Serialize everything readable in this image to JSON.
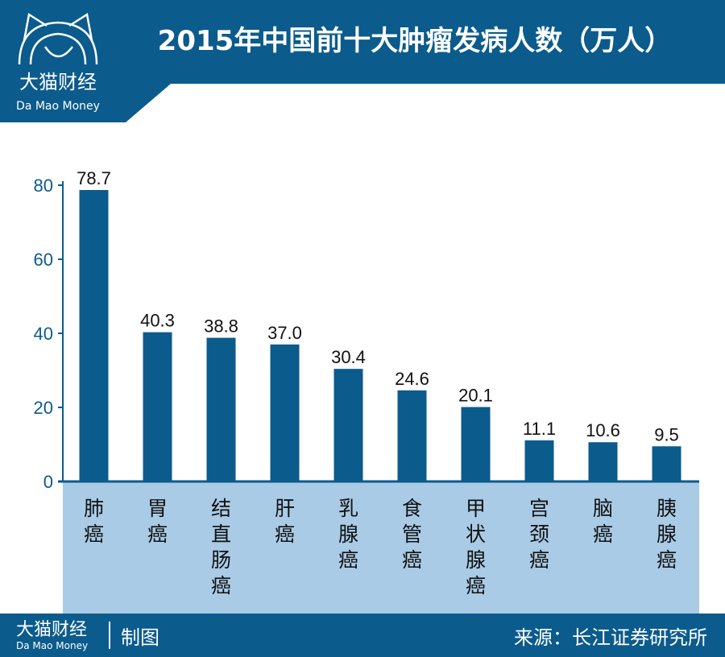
{
  "header": {
    "title": "2015年中国前十大肿瘤发病人数（万人）",
    "logo_cn": "大猫财经",
    "logo_en": "Da Mao Money"
  },
  "footer": {
    "brand_cn": "大猫财经",
    "brand_en": "Da Mao Money",
    "made": "制图",
    "source": "来源：长江证券研究所"
  },
  "colors": {
    "brand": "#0b5b8c",
    "bar": "#0b5b8c",
    "category_band": "#a9cbe6"
  },
  "chart_data": {
    "type": "bar",
    "title": "2015年中国前十大肿瘤发病人数（万人）",
    "categories": [
      "肺癌",
      "胃癌",
      "结直肠癌",
      "肝癌",
      "乳腺癌",
      "食管癌",
      "甲状腺癌",
      "宫颈癌",
      "脑癌",
      "胰腺癌"
    ],
    "values": [
      78.7,
      40.3,
      38.8,
      37.0,
      30.4,
      24.6,
      20.1,
      11.1,
      10.6,
      9.5
    ],
    "value_labels": [
      "78.7",
      "40.3",
      "38.8",
      "37.0",
      "30.4",
      "24.6",
      "20.1",
      "11.1",
      "10.6",
      "9.5"
    ],
    "yticks": [
      "0",
      "20",
      "40",
      "60",
      "80"
    ],
    "ylim": [
      0,
      80
    ],
    "grid": false,
    "xlabel": "",
    "ylabel": ""
  }
}
